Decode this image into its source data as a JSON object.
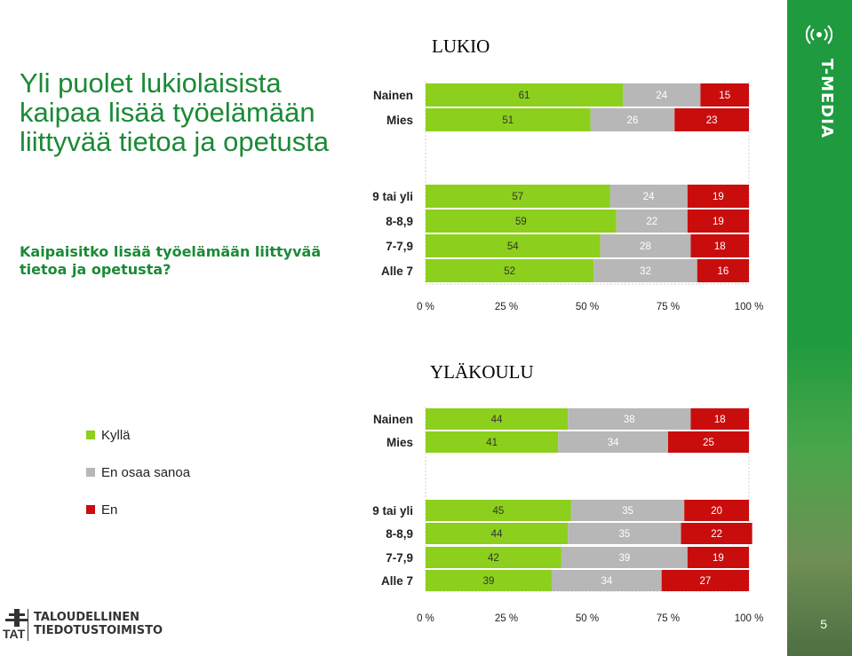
{
  "slide": {
    "title": "Yli puolet lukiolaisista kaipaa lisää työelämään liittyvää tietoa ja opetusta",
    "question": "Kaipaisitko lisää työelämään liittyvää tietoa ja opetusta?",
    "page_number": "5"
  },
  "legend": [
    {
      "label": "Kyllä",
      "color": "#8ccf1c"
    },
    {
      "label": "En osaa sanoa",
      "color": "#b7b7b7"
    },
    {
      "label": "En",
      "color": "#c90d0d"
    }
  ],
  "brand": {
    "name": "T-MEDIA",
    "strip_color": "#1f9a3f"
  },
  "footer": {
    "org_line1": "TALOUDELLINEN",
    "org_line2": "TIEDOTUSTOIMISTO",
    "abbrev": "TAT"
  },
  "colors": {
    "yes": "#8ccf1c",
    "dont_know": "#b7b7b7",
    "no": "#c90d0d"
  },
  "chart_data": [
    {
      "type": "bar",
      "stacked": true,
      "orientation": "horizontal",
      "title": "LUKIO",
      "categories": [
        "Nainen",
        "Mies",
        "9 tai yli",
        "8-8,9",
        "7-7,9",
        "Alle 7"
      ],
      "series": [
        {
          "name": "Kyllä",
          "values": [
            61,
            51,
            57,
            59,
            54,
            52
          ]
        },
        {
          "name": "En osaa sanoa",
          "values": [
            24,
            26,
            24,
            22,
            28,
            32
          ]
        },
        {
          "name": "En",
          "values": [
            15,
            23,
            19,
            19,
            18,
            16
          ]
        }
      ],
      "xticks": [
        "0 %",
        "25 %",
        "50 %",
        "75 %",
        "100 %"
      ],
      "xlim": [
        0,
        100
      ]
    },
    {
      "type": "bar",
      "stacked": true,
      "orientation": "horizontal",
      "title": "YLÄKOULU",
      "categories": [
        "Nainen",
        "Mies",
        "9 tai yli",
        "8-8,9",
        "7-7,9",
        "Alle 7"
      ],
      "series": [
        {
          "name": "Kyllä",
          "values": [
            44,
            41,
            45,
            44,
            42,
            39
          ]
        },
        {
          "name": "En osaa sanoa",
          "values": [
            38,
            34,
            35,
            35,
            39,
            34
          ]
        },
        {
          "name": "En",
          "values": [
            18,
            25,
            20,
            22,
            19,
            27
          ]
        }
      ],
      "xticks": [
        "0 %",
        "25 %",
        "50 %",
        "75 %",
        "100 %"
      ],
      "xlim": [
        0,
        100
      ]
    }
  ]
}
